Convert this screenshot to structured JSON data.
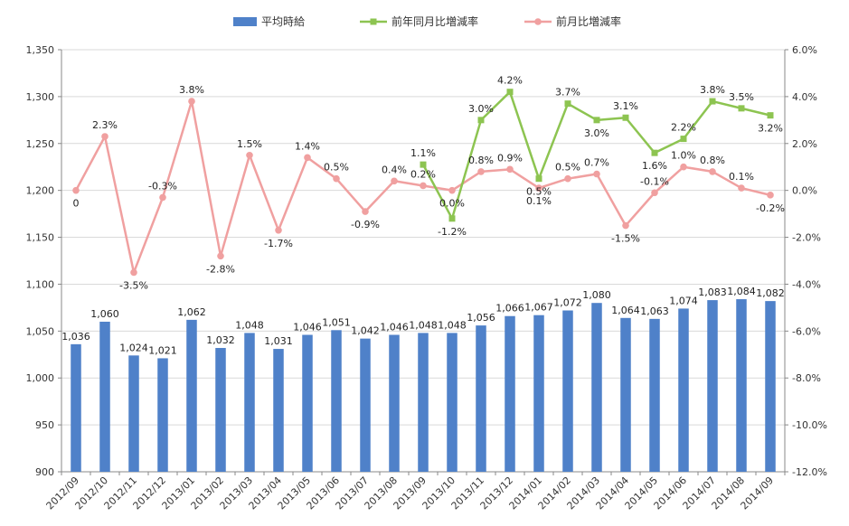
{
  "chart_data": {
    "type": "bar",
    "categories": [
      "2012/09",
      "2012/10",
      "2012/11",
      "2012/12",
      "2013/01",
      "2013/02",
      "2013/03",
      "2013/04",
      "2013/05",
      "2013/06",
      "2013/07",
      "2013/08",
      "2013/09",
      "2013/10",
      "2013/11",
      "2013/12",
      "2014/01",
      "2014/02",
      "2014/03",
      "2014/04",
      "2014/05",
      "2014/06",
      "2014/07",
      "2014/08",
      "2014/09"
    ],
    "y_axis_left": {
      "min": 900,
      "max": 1350,
      "step": 50,
      "tick_labels": [
        "900",
        "950",
        "1,000",
        "1,050",
        "1,100",
        "1,150",
        "1,200",
        "1,250",
        "1,300",
        "1,350"
      ]
    },
    "y_axis_right": {
      "min": -12,
      "max": 6,
      "step": 2,
      "unit": "%",
      "tick_labels": [
        "-12.0%",
        "-10.0%",
        "-8.0%",
        "-6.0%",
        "-4.0%",
        "-2.0%",
        "0.0%",
        "2.0%",
        "4.0%",
        "6.0%"
      ]
    },
    "legend_position": "top",
    "grid": true,
    "series": [
      {
        "name": "平均時給",
        "type": "bar",
        "axis": "left",
        "color": "#4f81c9",
        "values": [
          1036,
          1060,
          1024,
          1021,
          1062,
          1032,
          1048,
          1031,
          1046,
          1051,
          1042,
          1046,
          1048,
          1048,
          1056,
          1066,
          1067,
          1072,
          1080,
          1064,
          1063,
          1074,
          1083,
          1084,
          1082
        ],
        "labels": [
          "1,036",
          "1,060",
          "1,024",
          "1,021",
          "1,062",
          "1,032",
          "1,048",
          "1,031",
          "1,046",
          "1,051",
          "1,042",
          "1,046",
          "1,048",
          "1,048",
          "1,056",
          "1,066",
          "1,067",
          "1,072",
          "1,080",
          "1,064",
          "1,063",
          "1,074",
          "1,083",
          "1,084",
          "1,082"
        ]
      },
      {
        "name": "前年同月比増減率",
        "type": "line",
        "axis": "right",
        "color": "#8dc451",
        "marker": "square",
        "values": [
          null,
          null,
          null,
          null,
          null,
          null,
          null,
          null,
          null,
          null,
          null,
          null,
          1.1,
          -1.2,
          3.0,
          4.2,
          0.5,
          3.7,
          3.0,
          3.1,
          1.6,
          2.2,
          3.8,
          3.5,
          3.2
        ],
        "labels": [
          null,
          null,
          null,
          null,
          null,
          null,
          null,
          null,
          null,
          null,
          null,
          null,
          "1.1%",
          "-1.2%",
          "3.0%",
          "4.2%",
          "0.5%",
          "3.7%",
          "3.0%",
          "3.1%",
          "1.6%",
          "2.2%",
          "3.8%",
          "3.5%",
          "3.2%"
        ]
      },
      {
        "name": "前月比増減率",
        "type": "line",
        "axis": "right",
        "color": "#f0a0a0",
        "marker": "circle",
        "values": [
          0,
          2.3,
          -3.5,
          -0.3,
          3.8,
          -2.8,
          1.5,
          -1.7,
          1.4,
          0.5,
          -0.9,
          0.4,
          0.2,
          0.0,
          0.8,
          0.9,
          0.1,
          0.5,
          0.7,
          -1.5,
          -0.1,
          1.0,
          0.8,
          0.1,
          -0.2
        ],
        "labels": [
          "0",
          "2.3%",
          "-3.5%",
          "-0.3%",
          "3.8%",
          "-2.8%",
          "1.5%",
          "-1.7%",
          "1.4%",
          "0.5%",
          "-0.9%",
          "0.4%",
          "0.2%",
          "0.0%",
          "0.8%",
          "0.9%",
          "0.1%",
          "0.5%",
          "0.7%",
          "-1.5%",
          "-0.1%",
          "1.0%",
          "0.8%",
          "0.1%",
          "-0.2%"
        ]
      }
    ]
  }
}
